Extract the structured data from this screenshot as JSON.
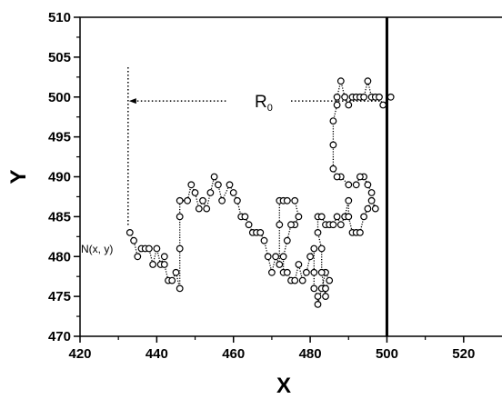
{
  "chart_data": {
    "type": "scatter",
    "title": "",
    "xlabel": "X",
    "ylabel": "Y",
    "xlim": [
      420,
      530
    ],
    "ylim": [
      470,
      510
    ],
    "x_ticks": [
      420,
      440,
      460,
      480,
      500,
      520
    ],
    "y_ticks": [
      470,
      475,
      480,
      485,
      490,
      495,
      500,
      505,
      510
    ],
    "grid": false,
    "legend": "none",
    "marker": "open-circle",
    "line_style": "dotted",
    "boundary_x": 500,
    "series": [
      {
        "points": [
          [
            433,
            483
          ],
          [
            434,
            482
          ],
          [
            435,
            480
          ],
          [
            436,
            481
          ],
          [
            437,
            481
          ],
          [
            438,
            481
          ],
          [
            439,
            479
          ],
          [
            440,
            481
          ],
          [
            441,
            479
          ],
          [
            442,
            480
          ],
          [
            442,
            479
          ],
          [
            443,
            477
          ],
          [
            444,
            477
          ],
          [
            445,
            478
          ],
          [
            446,
            476
          ],
          [
            446,
            481
          ],
          [
            446,
            485
          ],
          [
            446,
            487
          ],
          [
            448,
            487
          ],
          [
            449,
            489
          ],
          [
            450,
            488
          ],
          [
            451,
            486
          ],
          [
            452,
            487
          ],
          [
            453,
            486
          ],
          [
            454,
            488
          ],
          [
            455,
            490
          ],
          [
            456,
            489
          ],
          [
            457,
            487
          ],
          [
            459,
            489
          ],
          [
            460,
            488
          ],
          [
            461,
            487
          ],
          [
            462,
            485
          ],
          [
            463,
            485
          ],
          [
            464,
            484
          ],
          [
            465,
            483
          ],
          [
            466,
            483
          ],
          [
            467,
            483
          ],
          [
            468,
            482
          ],
          [
            469,
            480
          ],
          [
            470,
            478
          ],
          [
            471,
            480
          ],
          [
            472,
            479
          ],
          [
            472,
            484
          ],
          [
            472,
            487
          ],
          [
            473,
            487
          ],
          [
            474,
            487
          ],
          [
            476,
            487
          ],
          [
            477,
            485
          ],
          [
            476,
            484
          ],
          [
            475,
            484
          ],
          [
            474,
            482
          ],
          [
            473,
            480
          ],
          [
            473,
            478
          ],
          [
            474,
            478
          ],
          [
            475,
            477
          ],
          [
            476,
            477
          ],
          [
            477,
            479
          ],
          [
            478,
            477
          ],
          [
            479,
            478
          ],
          [
            480,
            480
          ],
          [
            481,
            481
          ],
          [
            481,
            478
          ],
          [
            481,
            476
          ],
          [
            482,
            475
          ],
          [
            482,
            474
          ],
          [
            483,
            476
          ],
          [
            484,
            478
          ],
          [
            485,
            477
          ],
          [
            484,
            476
          ],
          [
            484,
            475
          ],
          [
            483,
            478
          ],
          [
            483,
            481
          ],
          [
            482,
            483
          ],
          [
            482,
            485
          ],
          [
            483,
            485
          ],
          [
            484,
            484
          ],
          [
            485,
            484
          ],
          [
            486,
            484
          ],
          [
            487,
            485
          ],
          [
            488,
            484
          ],
          [
            489,
            485
          ],
          [
            490,
            487
          ],
          [
            490,
            485
          ],
          [
            491,
            483
          ],
          [
            492,
            483
          ],
          [
            493,
            483
          ],
          [
            494,
            485
          ],
          [
            495,
            486
          ],
          [
            496,
            487
          ],
          [
            497,
            486
          ],
          [
            496,
            488
          ],
          [
            495,
            489
          ],
          [
            494,
            490
          ],
          [
            493,
            490
          ],
          [
            492,
            489
          ],
          [
            490,
            489
          ],
          [
            488,
            490
          ],
          [
            487,
            490
          ],
          [
            486,
            491
          ],
          [
            486,
            494
          ],
          [
            486,
            497
          ],
          [
            487,
            499
          ],
          [
            487,
            500
          ],
          [
            488,
            502
          ],
          [
            489,
            500
          ],
          [
            490,
            499
          ],
          [
            491,
            500
          ],
          [
            492,
            500
          ],
          [
            493,
            500
          ],
          [
            494,
            500
          ],
          [
            495,
            502
          ],
          [
            496,
            500
          ],
          [
            497,
            500
          ],
          [
            498,
            500
          ],
          [
            499,
            499
          ],
          [
            501,
            500
          ]
        ]
      }
    ],
    "annotations": {
      "r0_label_main": "R",
      "r0_label_sub": "0",
      "n_label": "N(x, y)"
    }
  },
  "plot_bg": "#ffffff",
  "ink_color": "#000000"
}
